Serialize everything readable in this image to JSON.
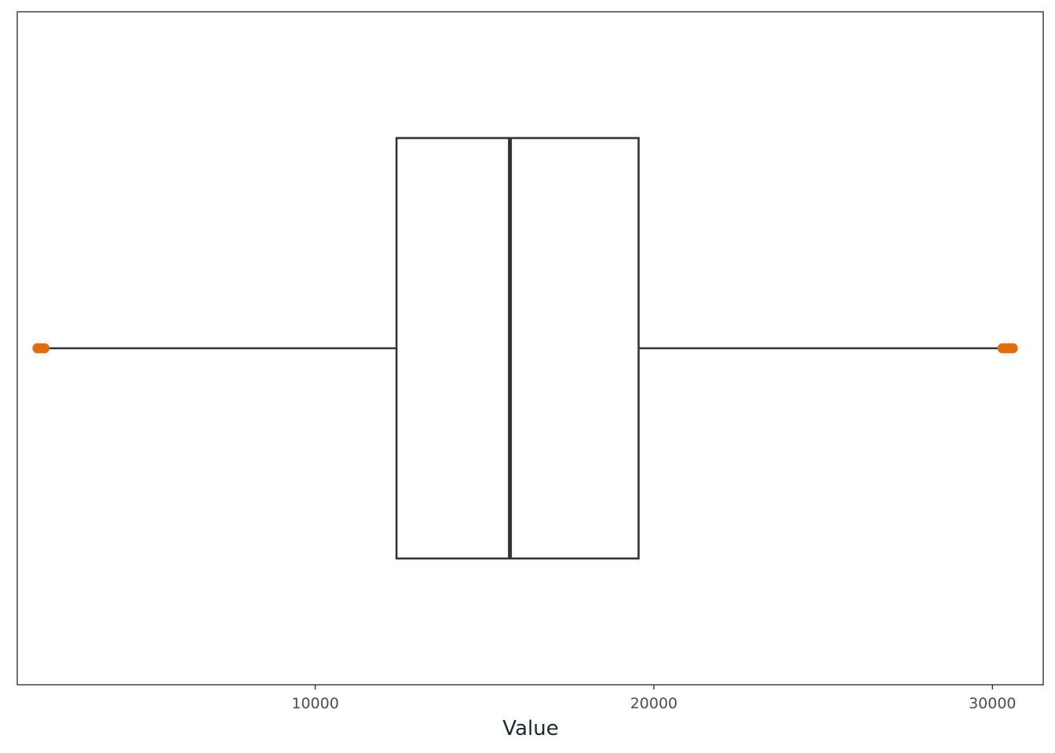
{
  "chart_data": {
    "type": "boxplot",
    "title": "",
    "xlabel": "Value",
    "ylabel": "",
    "xlim": [
      1200,
      31500
    ],
    "x_ticks": [
      10000,
      20000,
      30000
    ],
    "x_tick_labels": [
      "10000",
      "20000",
      "30000"
    ],
    "grid": false,
    "box": {
      "whisker_low": 2050,
      "q1": 12400,
      "median": 15750,
      "q3": 19550,
      "whisker_high": 30200
    },
    "outliers": [
      1800,
      1900,
      2000,
      30300,
      30400,
      30500,
      30600
    ],
    "colors": {
      "box_stroke": "#333333",
      "outlier": "#e36c0a",
      "panel_border": "#333333",
      "axis_text": "#4d4d4d",
      "axis_title": "#1a2a33"
    }
  }
}
